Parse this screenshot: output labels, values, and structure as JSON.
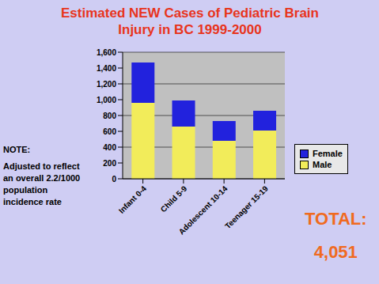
{
  "chart_data": {
    "type": "bar",
    "title": "Estimated NEW Cases of Pediatric Brain Injury in BC 1999-2000",
    "categories": [
      "Infant 0-4",
      "Child 5-9",
      "Adolescent 10-14",
      "Teenager 15-19"
    ],
    "series": [
      {
        "name": "Male",
        "color": "#f2ec5a",
        "values": [
          960,
          660,
          480,
          610
        ]
      },
      {
        "name": "Female",
        "color": "#2222dd",
        "values": [
          510,
          330,
          250,
          250
        ]
      }
    ],
    "stacked": true,
    "ylim": [
      0,
      1600
    ],
    "yticks": [
      0,
      200,
      400,
      600,
      800,
      {
        "value": 1000,
        "label": "1,000"
      },
      {
        "value": 1200,
        "label": "1,200"
      },
      {
        "value": 1400,
        "label": "1,400"
      },
      {
        "value": 1600,
        "label": "1,600"
      }
    ],
    "grid": true,
    "legend": "right",
    "annotations": [
      "NOTE:",
      "Adjusted to reflect an overall 2.2/1000 population incidence rate",
      "TOTAL:",
      "4,051"
    ]
  }
}
